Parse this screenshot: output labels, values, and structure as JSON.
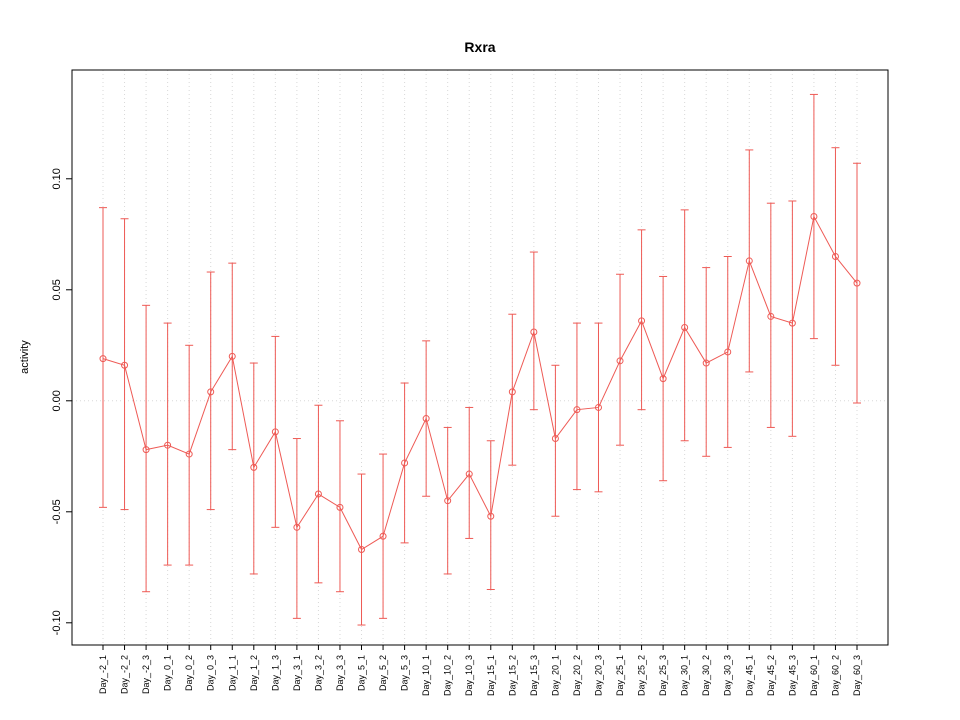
{
  "chart_data": {
    "type": "line",
    "title": "Rxra",
    "xlabel": "",
    "ylabel": "activity",
    "ylim": [
      -0.11,
      0.149
    ],
    "yticks": [
      -0.1,
      -0.05,
      0.0,
      0.05,
      0.1
    ],
    "ytick_labels": [
      "-0.10",
      "-0.05",
      "0.00",
      "0.05",
      "0.10"
    ],
    "grid": "vertical dotted gridline at every category; dotted horizontal reference line at y=0",
    "legend_position": "none",
    "point_style": "open-circle",
    "error_bars": true,
    "colors": {
      "series": "#ee5a55",
      "grid": "#d8d8d8",
      "axis": "#000000"
    },
    "categories": [
      "Day_-2_1",
      "Day_-2_2",
      "Day_-2_3",
      "Day_0_1",
      "Day_0_2",
      "Day_0_3",
      "Day_1_1",
      "Day_1_2",
      "Day_1_3",
      "Day_3_1",
      "Day_3_2",
      "Day_3_3",
      "Day_5_1",
      "Day_5_2",
      "Day_5_3",
      "Day_10_1",
      "Day_10_2",
      "Day_10_3",
      "Day_15_1",
      "Day_15_2",
      "Day_15_3",
      "Day_20_1",
      "Day_20_2",
      "Day_20_3",
      "Day_25_1",
      "Day_25_2",
      "Day_25_3",
      "Day_30_1",
      "Day_30_2",
      "Day_30_3",
      "Day_45_1",
      "Day_45_2",
      "Day_45_3",
      "Day_60_1",
      "Day_60_2",
      "Day_60_3"
    ],
    "series": [
      {
        "name": "activity",
        "values": [
          0.019,
          0.016,
          -0.022,
          -0.02,
          -0.024,
          0.004,
          0.02,
          -0.03,
          -0.014,
          -0.057,
          -0.042,
          -0.048,
          -0.067,
          -0.061,
          -0.028,
          -0.008,
          -0.045,
          -0.033,
          -0.052,
          0.004,
          0.031,
          -0.017,
          -0.004,
          -0.003,
          0.018,
          0.036,
          0.01,
          0.033,
          0.017,
          0.022,
          0.063,
          0.038,
          0.035,
          0.083,
          0.065,
          0.053
        ],
        "lower": [
          -0.048,
          -0.049,
          -0.086,
          -0.074,
          -0.074,
          -0.049,
          -0.022,
          -0.078,
          -0.057,
          -0.098,
          -0.082,
          -0.086,
          -0.101,
          -0.098,
          -0.064,
          -0.043,
          -0.078,
          -0.062,
          -0.085,
          -0.029,
          -0.004,
          -0.052,
          -0.04,
          -0.041,
          -0.02,
          -0.004,
          -0.036,
          -0.018,
          -0.025,
          -0.021,
          0.013,
          -0.012,
          -0.016,
          0.028,
          0.016,
          -0.001
        ],
        "upper": [
          0.087,
          0.082,
          0.043,
          0.035,
          0.025,
          0.058,
          0.062,
          0.017,
          0.029,
          -0.017,
          -0.002,
          -0.009,
          -0.033,
          -0.024,
          0.008,
          0.027,
          -0.012,
          -0.003,
          -0.018,
          0.039,
          0.067,
          0.016,
          0.035,
          0.035,
          0.057,
          0.077,
          0.056,
          0.086,
          0.06,
          0.065,
          0.113,
          0.089,
          0.09,
          0.138,
          0.114,
          0.107
        ]
      }
    ]
  }
}
